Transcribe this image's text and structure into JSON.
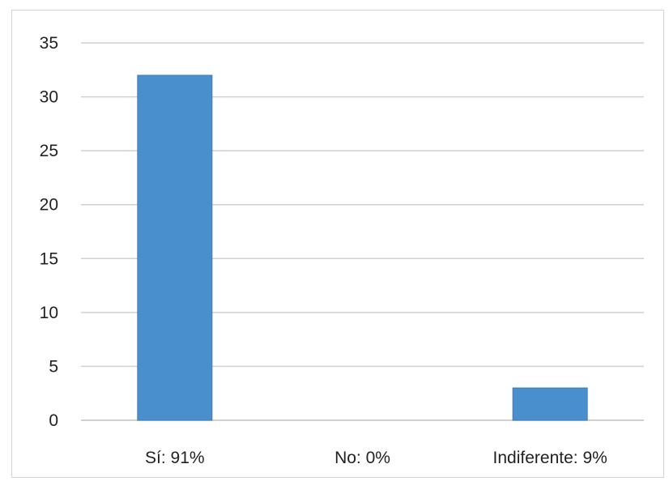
{
  "chart_data": {
    "type": "bar",
    "title": "",
    "xlabel": "",
    "ylabel": "",
    "categories": [
      "Sí: 91%",
      "No: 0%",
      "Indiferente: 9%"
    ],
    "values": [
      32,
      0,
      3
    ],
    "ylim": [
      0,
      35
    ],
    "yticks": [
      0,
      5,
      10,
      15,
      20,
      25,
      30,
      35
    ],
    "grid": true,
    "legend": "none",
    "bar_color": "#4a8fcd",
    "bar_edge_color": "#3d7cb8",
    "grid_color": "#d0d0d0"
  }
}
